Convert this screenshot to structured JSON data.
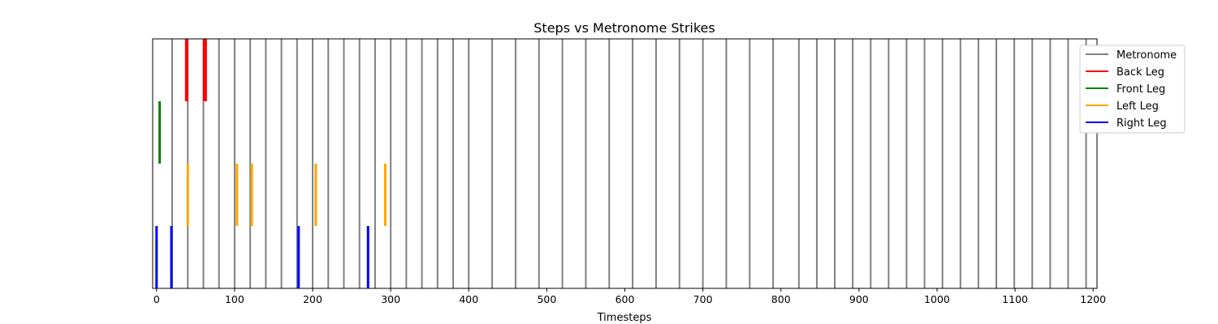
{
  "chart_data": {
    "type": "event_lines",
    "title": "Steps vs Metronome Strikes",
    "xlabel": "Timesteps",
    "ylabel": "",
    "xlim": [
      -5,
      1205
    ],
    "xticks": [
      0,
      100,
      200,
      300,
      400,
      500,
      600,
      700,
      800,
      900,
      1000,
      1100,
      1200
    ],
    "legend_position": "upper right, outside plot",
    "series": [
      {
        "name": "Metronome",
        "color": "#808080",
        "band": [
          0,
          1
        ],
        "x": [
          20,
          40,
          60,
          80,
          100,
          120,
          140,
          160,
          180,
          200,
          220,
          240,
          260,
          280,
          300,
          320,
          340,
          360,
          380,
          400,
          430,
          460,
          490,
          520,
          550,
          580,
          610,
          640,
          670,
          700,
          730,
          760,
          790,
          823,
          846,
          869,
          892,
          915,
          938,
          961,
          984,
          1007,
          1030,
          1053,
          1076,
          1099,
          1122,
          1145,
          1168,
          1191
        ]
      },
      {
        "name": "Back Leg",
        "color": "#ff0000",
        "band": [
          0.75,
          1
        ],
        "x": [
          38,
          39,
          61,
          62,
          63
        ]
      },
      {
        "name": "Front Leg",
        "color": "#008000",
        "band": [
          0.5,
          0.75
        ],
        "x": [
          4
        ]
      },
      {
        "name": "Left Leg",
        "color": "#ffa500",
        "band": [
          0.25,
          0.5
        ],
        "x": [
          40,
          103,
          122,
          204,
          293
        ]
      },
      {
        "name": "Right Leg",
        "color": "#0000ff",
        "band": [
          0,
          0.25
        ],
        "x": [
          0,
          19,
          182,
          271
        ]
      }
    ]
  }
}
